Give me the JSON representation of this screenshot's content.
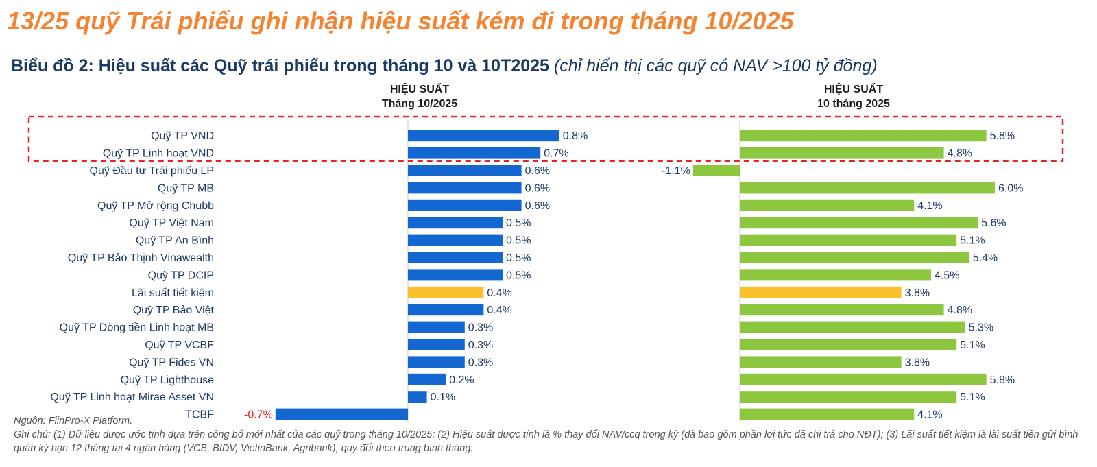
{
  "header": {
    "headline": "13/25 quỹ Trái phiếu ghi nhận hiệu suất kém đi trong tháng 10/2025",
    "subtitle_bold": "Biểu đồ 2: Hiệu suất các Quỹ trái phiếu trong tháng 10 và 10T2025",
    "subtitle_note": "(chỉ hiển thị các quỹ có NAV >100 tỷ đồng)"
  },
  "panels": {
    "left": {
      "title_line1": "HIỆU SUẤT",
      "title_line2": "Tháng 10/2025"
    },
    "right": {
      "title_line1": "HIỆU SUẤT",
      "title_line2": "10 tháng 2025"
    }
  },
  "chart_data": {
    "type": "bar",
    "orientation": "horizontal",
    "unit": "%",
    "categories": [
      "Quỹ TP VND",
      "Quỹ TP Linh hoạt VND",
      "Quỹ Đầu tư Trái phiếu LP",
      "Quỹ TP MB",
      "Quỹ TP Mở rộng Chubb",
      "Quỹ TP Việt Nam",
      "Quỹ TP An Bình",
      "Quỹ TP Bảo Thịnh Vinawealth",
      "Quỹ TP DCIP",
      "Lãi suất tiết kiệm",
      "Quỹ TP Bảo Việt",
      "Quỹ TP Dòng tiền Linh hoạt MB",
      "Quỹ TP VCBF",
      "Quỹ TP Fides VN",
      "Quỹ TP Lighthouse",
      "Quỹ TP Linh hoạt Mirae Asset VN",
      "TCBF"
    ],
    "series": [
      {
        "name": "HIỆU SUẤT Tháng 10/2025",
        "values": [
          0.8,
          0.7,
          0.6,
          0.6,
          0.6,
          0.5,
          0.5,
          0.5,
          0.5,
          0.4,
          0.4,
          0.3,
          0.3,
          0.3,
          0.2,
          0.1,
          -0.7
        ],
        "labels": [
          "0.8%",
          "0.7%",
          "0.6%",
          "0.6%",
          "0.6%",
          "0.5%",
          "0.5%",
          "0.5%",
          "0.5%",
          "0.4%",
          "0.4%",
          "0.3%",
          "0.3%",
          "0.3%",
          "0.2%",
          "0.1%",
          "-0.7%"
        ],
        "color": "#1466d0"
      },
      {
        "name": "HIỆU SUẤT 10 tháng 2025",
        "values": [
          5.8,
          4.8,
          -1.1,
          6.0,
          4.1,
          5.6,
          5.1,
          5.4,
          4.5,
          3.8,
          4.8,
          5.3,
          5.1,
          3.8,
          5.8,
          5.1,
          4.1
        ],
        "labels": [
          "5.8%",
          "4.8%",
          "-1.1%",
          "6.0%",
          "4.1%",
          "5.6%",
          "5.1%",
          "5.4%",
          "4.5%",
          "3.8%",
          "4.8%",
          "5.3%",
          "5.1%",
          "3.8%",
          "5.8%",
          "5.1%",
          "4.1%"
        ],
        "color": "#8dc63f"
      }
    ],
    "highlight_category": "Lãi suất tiết kiệm",
    "highlight_color": "#fbc02d",
    "highlighted_rows_dashed_box": [
      "Quỹ TP VND",
      "Quỹ TP Linh hoạt VND"
    ],
    "box_color": "#e3242b",
    "negative_label_color": "#e3242b",
    "label_color": "#1b3a63"
  },
  "footer": {
    "source": "Nguồn: FiinPro-X Platform.",
    "note": "Ghi chú: (1) Dữ liệu được ước tính dựa trên công bố mới nhất của các quỹ trong tháng 10/2025; (2) Hiệu suất được tính là % thay đổi NAV/ccq trong kỳ (đã bao gồm phần lợi tức đã chi trả cho NĐT); (3) Lãi suất tiết kiệm là lãi suất tiền gửi bình quân kỳ hạn 12 tháng tại 4 ngân hàng (VCB, BIDV, VietinBank, Agribank), quy đổi theo trung bình tháng."
  }
}
